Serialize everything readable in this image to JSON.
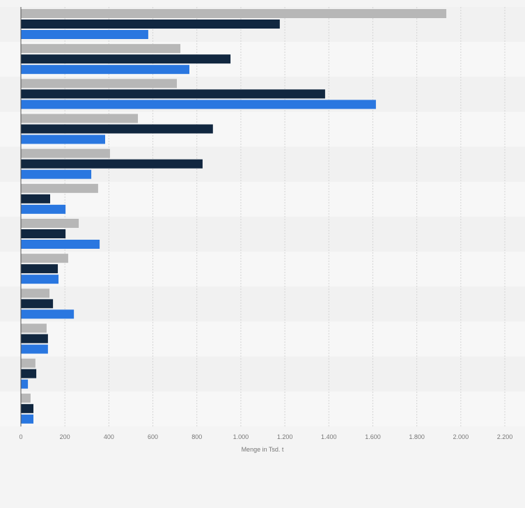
{
  "chart_data": {
    "type": "bar",
    "orientation": "horizontal",
    "categories": [
      "",
      "",
      "",
      "",
      "",
      "",
      "",
      "",
      "",
      "",
      "",
      ""
    ],
    "series": [
      {
        "color": "#b7b7b7",
        "values": [
          1934,
          725,
          709,
          532,
          405,
          351,
          263,
          215,
          130,
          117,
          66,
          44
        ]
      },
      {
        "color": "#112740",
        "values": [
          1177,
          953,
          1383,
          873,
          826,
          133,
          203,
          168,
          146,
          123,
          70,
          57
        ]
      },
      {
        "color": "#2a77e0",
        "values": [
          579,
          766,
          1614,
          383,
          320,
          203,
          358,
          171,
          241,
          123,
          32,
          57
        ]
      }
    ],
    "xlim": [
      0,
      2200
    ],
    "xticks": [
      0,
      200,
      400,
      600,
      800,
      1000,
      1200,
      1400,
      1600,
      1800,
      2000,
      2200
    ],
    "xtick_labels": [
      "0",
      "200",
      "400",
      "600",
      "800",
      "1.000",
      "1.200",
      "1.400",
      "1.600",
      "1.800",
      "2.000",
      "2.200"
    ],
    "xlabel": "Menge in Tsd. t",
    "grid": true,
    "legend": "none"
  }
}
